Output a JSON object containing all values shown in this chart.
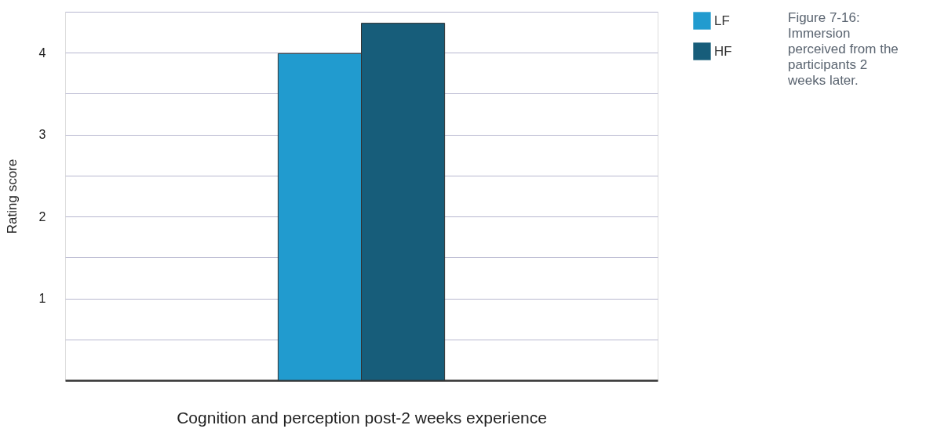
{
  "chart_data": {
    "type": "bar",
    "xlabel": "Cognition and perception post-2 weeks experience",
    "ylabel": "Rating score",
    "categories": [
      null
    ],
    "series": [
      {
        "name": "LF",
        "color": "#219bcf",
        "values": [
          3.99
        ]
      },
      {
        "name": "HF",
        "color": "#175d7a",
        "values": [
          4.36
        ]
      }
    ],
    "ylim": [
      0,
      4.5
    ],
    "yticks": [
      {
        "value": 0.5,
        "label": null
      },
      1,
      {
        "value": 1.5,
        "label": null
      },
      2,
      {
        "value": 2.5,
        "label": null
      },
      3,
      {
        "value": 3.5,
        "label": null
      },
      4,
      {
        "value": 4.5,
        "label": null
      }
    ],
    "grid": "y",
    "legend": "top right",
    "annotations": [
      "Figure 7-16: Immersion perceived from the participants 2 weeks later."
    ]
  }
}
